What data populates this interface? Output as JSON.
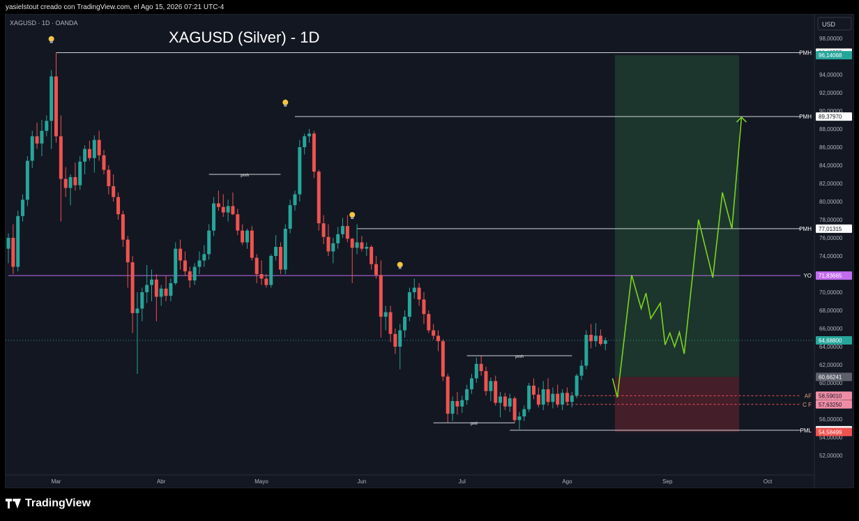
{
  "credit_text": "yasielstout creado con TradingView.com, el Ago 15, 2026 07:21 UTC-4",
  "footer_brand": "TradingView",
  "currency_button": "USD",
  "colors": {
    "up": "#26a69a",
    "down": "#ef5350",
    "background": "#131722",
    "profit_zone": "#1e3a2f",
    "loss_zone": "#4a1f2a",
    "projection": "#7ed321",
    "yo_line": "#c36cf0"
  },
  "chart_data": {
    "type": "candlestick",
    "symbol_label": "XAGUSD · 1D · OANDA",
    "title": "XAGUSD (Silver) - 1D",
    "price_axis": [
      "98,00000",
      "96,00000",
      "94,00000",
      "92,00000",
      "90,00000",
      "88,00000",
      "86,00000",
      "84,00000",
      "82,00000",
      "80,00000",
      "78,00000",
      "76,00000",
      "74,00000",
      "72,00000",
      "70,00000",
      "68,00000",
      "66,00000",
      "64,00000",
      "62,00000",
      "60,00000",
      "58,00000",
      "56,00000",
      "54,00000",
      "52,00000"
    ],
    "price_ticks": [
      98,
      96,
      94,
      92,
      90,
      88,
      86,
      84,
      82,
      80,
      78,
      76,
      74,
      72,
      70,
      68,
      66,
      64,
      62,
      60,
      58,
      56,
      54,
      52
    ],
    "time_axis": [
      {
        "label": "Mar",
        "i": 10
      },
      {
        "label": "Abr",
        "i": 32
      },
      {
        "label": "Mayo",
        "i": 53
      },
      {
        "label": "Jun",
        "i": 74
      },
      {
        "label": "Jul",
        "i": 95
      },
      {
        "label": "Ago",
        "i": 117
      },
      {
        "label": "Sep",
        "i": 138
      },
      {
        "label": "Oct",
        "i": 159
      }
    ],
    "ohlc": [
      [
        74.8,
        76.5,
        73.2,
        76.0
      ],
      [
        76.0,
        77.5,
        72.0,
        72.8
      ],
      [
        72.8,
        79.0,
        72.3,
        78.4
      ],
      [
        78.4,
        80.8,
        77.8,
        80.2
      ],
      [
        80.2,
        85.0,
        79.5,
        84.5
      ],
      [
        84.5,
        87.8,
        83.7,
        87.2
      ],
      [
        87.2,
        88.7,
        85.8,
        86.4
      ],
      [
        86.4,
        89.0,
        85.0,
        87.8
      ],
      [
        87.8,
        89.5,
        87.2,
        88.9
      ],
      [
        88.9,
        94.5,
        85.8,
        93.8
      ],
      [
        93.8,
        96.4,
        86.5,
        87.2
      ],
      [
        87.2,
        89.5,
        77.8,
        82.5
      ],
      [
        82.5,
        83.8,
        80.5,
        81.5
      ],
      [
        81.5,
        83.0,
        79.6,
        82.7
      ],
      [
        82.7,
        84.3,
        81.2,
        81.8
      ],
      [
        81.8,
        85.0,
        81.3,
        84.4
      ],
      [
        84.4,
        86.2,
        83.0,
        85.8
      ],
      [
        85.8,
        86.7,
        84.5,
        84.8
      ],
      [
        84.8,
        87.3,
        83.2,
        86.8
      ],
      [
        86.8,
        87.8,
        84.5,
        85.1
      ],
      [
        85.1,
        85.7,
        83.0,
        83.5
      ],
      [
        83.5,
        84.0,
        80.8,
        81.7
      ],
      [
        81.7,
        83.0,
        80.0,
        80.5
      ],
      [
        80.5,
        81.0,
        78.0,
        78.6
      ],
      [
        78.6,
        79.0,
        75.0,
        75.8
      ],
      [
        75.8,
        76.2,
        70.5,
        73.3
      ],
      [
        73.3,
        74.0,
        65.5,
        67.7
      ],
      [
        67.7,
        70.0,
        61.0,
        68.2
      ],
      [
        68.2,
        70.5,
        66.8,
        70.0
      ],
      [
        70.0,
        73.0,
        68.8,
        70.8
      ],
      [
        70.8,
        72.5,
        69.0,
        71.4
      ],
      [
        71.4,
        72.0,
        66.8,
        69.5
      ],
      [
        69.5,
        70.8,
        68.5,
        70.4
      ],
      [
        70.4,
        71.8,
        69.0,
        69.6
      ],
      [
        69.6,
        71.5,
        69.0,
        71.0
      ],
      [
        71.0,
        75.5,
        70.8,
        74.8
      ],
      [
        74.8,
        75.8,
        72.5,
        73.5
      ],
      [
        73.5,
        74.5,
        71.8,
        72.3
      ],
      [
        72.3,
        72.8,
        70.5,
        71.3
      ],
      [
        71.3,
        73.2,
        70.8,
        72.8
      ],
      [
        72.8,
        74.5,
        72.0,
        73.5
      ],
      [
        73.5,
        75.2,
        72.8,
        74.2
      ],
      [
        74.2,
        77.5,
        73.6,
        76.8
      ],
      [
        76.8,
        80.5,
        76.2,
        79.8
      ],
      [
        79.8,
        81.2,
        79.0,
        79.4
      ],
      [
        79.4,
        80.8,
        78.3,
        78.8
      ],
      [
        78.8,
        80.2,
        77.8,
        79.5
      ],
      [
        79.5,
        81.0,
        78.5,
        78.6
      ],
      [
        78.6,
        79.2,
        76.3,
        76.8
      ],
      [
        76.8,
        77.5,
        75.2,
        75.5
      ],
      [
        75.5,
        77.0,
        74.8,
        76.8
      ],
      [
        76.8,
        77.3,
        73.5,
        73.8
      ],
      [
        73.8,
        74.2,
        71.0,
        72.0
      ],
      [
        72.0,
        73.5,
        70.8,
        71.5
      ],
      [
        71.5,
        72.0,
        70.5,
        70.8
      ],
      [
        70.8,
        74.2,
        70.5,
        74.0
      ],
      [
        74.0,
        76.3,
        73.5,
        75.0
      ],
      [
        75.0,
        75.5,
        72.0,
        72.5
      ],
      [
        72.5,
        77.5,
        72.0,
        77.0
      ],
      [
        77.0,
        80.2,
        76.5,
        79.6
      ],
      [
        79.6,
        81.2,
        79.0,
        80.8
      ],
      [
        80.8,
        86.8,
        80.0,
        86.0
      ],
      [
        86.0,
        87.5,
        85.2,
        87.2
      ],
      [
        87.2,
        88.0,
        86.5,
        87.5
      ],
      [
        87.5,
        87.8,
        82.6,
        83.3
      ],
      [
        83.3,
        83.5,
        76.8,
        77.6
      ],
      [
        77.6,
        78.5,
        75.3,
        76.1
      ],
      [
        76.1,
        77.5,
        74.0,
        74.5
      ],
      [
        74.5,
        76.0,
        73.2,
        75.4
      ],
      [
        75.4,
        77.2,
        74.8,
        76.4
      ],
      [
        76.4,
        78.2,
        76.0,
        77.3
      ],
      [
        77.3,
        78.5,
        75.5,
        75.9
      ],
      [
        75.9,
        76.0,
        71.0,
        74.9
      ],
      [
        74.9,
        77.5,
        74.2,
        75.5
      ],
      [
        75.5,
        76.2,
        74.5,
        74.8
      ],
      [
        74.8,
        75.5,
        74.0,
        75.0
      ],
      [
        75.0,
        75.2,
        72.5,
        73.1
      ],
      [
        73.1,
        74.0,
        71.5,
        71.9
      ],
      [
        71.9,
        73.5,
        65.0,
        67.3
      ],
      [
        67.3,
        68.5,
        65.8,
        67.8
      ],
      [
        67.8,
        68.5,
        64.5,
        65.4
      ],
      [
        65.4,
        66.0,
        63.2,
        64.0
      ],
      [
        64.0,
        66.5,
        61.5,
        65.8
      ],
      [
        65.8,
        68.0,
        65.0,
        67.3
      ],
      [
        67.3,
        70.5,
        66.8,
        70.0
      ],
      [
        70.0,
        71.5,
        69.3,
        70.5
      ],
      [
        70.5,
        71.0,
        68.5,
        69.2
      ],
      [
        69.2,
        70.0,
        66.5,
        67.6
      ],
      [
        67.6,
        68.0,
        65.5,
        65.8
      ],
      [
        65.8,
        66.5,
        64.8,
        65.2
      ],
      [
        65.2,
        65.8,
        63.5,
        64.6
      ],
      [
        64.6,
        64.8,
        60.2,
        60.7
      ],
      [
        60.7,
        61.0,
        55.6,
        56.6
      ],
      [
        56.6,
        58.5,
        55.8,
        58.0
      ],
      [
        58.0,
        59.0,
        56.5,
        57.4
      ],
      [
        57.4,
        58.6,
        56.7,
        58.1
      ],
      [
        58.1,
        59.8,
        57.6,
        59.3
      ],
      [
        59.3,
        61.0,
        58.8,
        60.5
      ],
      [
        60.5,
        62.8,
        60.0,
        62.1
      ],
      [
        62.1,
        63.0,
        60.8,
        61.3
      ],
      [
        61.3,
        61.8,
        58.6,
        59.1
      ],
      [
        59.1,
        60.6,
        58.0,
        60.2
      ],
      [
        60.2,
        60.8,
        57.5,
        57.8
      ],
      [
        57.8,
        59.0,
        56.2,
        58.5
      ],
      [
        58.5,
        58.9,
        57.0,
        57.4
      ],
      [
        57.4,
        58.8,
        56.8,
        58.3
      ],
      [
        58.3,
        58.5,
        55.6,
        55.9
      ],
      [
        55.9,
        56.8,
        54.9,
        56.3
      ],
      [
        56.3,
        57.5,
        55.8,
        57.1
      ],
      [
        57.1,
        60.0,
        56.8,
        59.7
      ],
      [
        59.7,
        60.5,
        58.2,
        58.7
      ],
      [
        58.7,
        59.5,
        57.3,
        57.6
      ],
      [
        57.6,
        60.2,
        57.0,
        59.3
      ],
      [
        59.3,
        60.5,
        57.5,
        57.9
      ],
      [
        57.9,
        59.5,
        57.2,
        58.8
      ],
      [
        58.8,
        59.8,
        57.3,
        57.6
      ],
      [
        57.6,
        59.3,
        57.0,
        58.9
      ],
      [
        58.9,
        59.5,
        57.5,
        57.9
      ],
      [
        57.9,
        59.0,
        57.3,
        58.6
      ],
      [
        58.6,
        61.0,
        58.3,
        60.8
      ],
      [
        60.8,
        62.5,
        60.3,
        61.9
      ],
      [
        61.9,
        65.8,
        61.5,
        65.3
      ],
      [
        65.3,
        66.5,
        63.8,
        64.6
      ],
      [
        64.6,
        66.6,
        64.0,
        65.2
      ],
      [
        65.2,
        65.9,
        64.1,
        64.3
      ],
      [
        64.3,
        65.0,
        63.6,
        64.7
      ]
    ],
    "levels": [
      {
        "label": "PMH",
        "price": 96.42555,
        "tag": "96,42555",
        "color": "#ffffff",
        "text_color": "#131722",
        "i_start": 10
      },
      {
        "label": "PMH",
        "price": 89.3797,
        "tag": "89,37970",
        "color": "#ffffff",
        "text_color": "#131722",
        "i_start": 60
      },
      {
        "label": "PMH",
        "price": 77.01315,
        "tag": "77,01315",
        "color": "#ffffff",
        "text_color": "#131722",
        "i_start": 73
      },
      {
        "label": "YO",
        "price": 71.83665,
        "tag": "71,83665",
        "color": "#c36cf0",
        "text_color": "#ffffff",
        "i_start": 0
      },
      {
        "label": "AF",
        "price": 58.5901,
        "tag": "58,59010",
        "color": "#f08da6",
        "text_color": "#131722",
        "i_start": 117
      },
      {
        "label": "C F",
        "price": 57.6325,
        "tag": "57,63250",
        "color": "#f08da6",
        "text_color": "#131722",
        "i_start": 117
      },
      {
        "label": "PML",
        "price": 54.776,
        "tag": "54,77600",
        "color": "#ffffff",
        "text_color": "#131722",
        "i_start": 105
      }
    ],
    "price_tags": [
      {
        "tag": "96,14068",
        "price": 96.14068,
        "color": "#26a69a",
        "text_color": "#ffffff"
      },
      {
        "tag": "64,68800",
        "price": 64.688,
        "color": "#26a69a",
        "text_color": "#ffffff"
      },
      {
        "tag": "60,66241",
        "price": 60.66241,
        "color": "#5d606b",
        "text_color": "#ffffff"
      },
      {
        "tag": "54,58499",
        "price": 54.58499,
        "color": "#ef5350",
        "text_color": "#ffffff"
      }
    ],
    "current_price": 64.688,
    "structure_lines": [
      {
        "label": "pmh",
        "i_start": 42,
        "i_end": 57,
        "price": 83.0
      },
      {
        "label": "pmh",
        "i_start": 96,
        "i_end": 118,
        "price": 63.0
      },
      {
        "label": "pml",
        "i_start": 89,
        "i_end": 106,
        "price": 55.6
      }
    ],
    "bulbs": [
      {
        "i": 9,
        "price": 96.4
      },
      {
        "i": 58,
        "price": 89.4
      },
      {
        "i": 72,
        "price": 77.0
      },
      {
        "i": 82,
        "price": 71.5
      }
    ],
    "zones": [
      {
        "type": "profit",
        "i_start": 127,
        "i_end": 153,
        "price_top": 96.14068,
        "price_bottom": 60.66241
      },
      {
        "type": "loss",
        "i_start": 127,
        "i_end": 153,
        "price_top": 60.66241,
        "price_bottom": 54.58499
      }
    ],
    "projection": [
      [
        126.5,
        60.5
      ],
      [
        127.5,
        58.4
      ],
      [
        130.5,
        71.9
      ],
      [
        132.5,
        68.2
      ],
      [
        133.5,
        69.9
      ],
      [
        134.5,
        67.1
      ],
      [
        136.5,
        68.8
      ],
      [
        137.5,
        64.2
      ],
      [
        138.5,
        65.5
      ],
      [
        139.5,
        64.0
      ],
      [
        140.5,
        65.6
      ],
      [
        141.5,
        63.2
      ],
      [
        144.5,
        78.0
      ],
      [
        147.5,
        71.6
      ],
      [
        149.5,
        81.0
      ],
      [
        151.5,
        77.0
      ],
      [
        153.5,
        89.3
      ]
    ]
  }
}
